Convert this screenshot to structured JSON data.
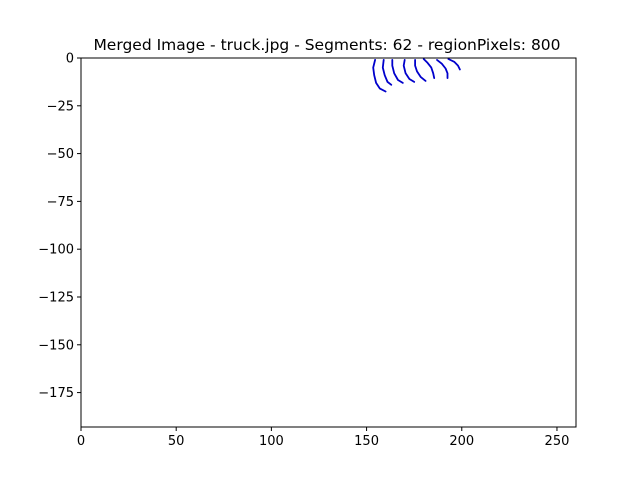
{
  "chart_data": {
    "type": "line",
    "title": "Merged Image - truck.jpg - Segments: 62 - regionPixels: 800",
    "xlabel": "",
    "ylabel": "",
    "xlim": [
      0,
      260
    ],
    "ylim": [
      -193,
      0
    ],
    "grid": false,
    "x_ticks": [
      0,
      50,
      100,
      150,
      200,
      250
    ],
    "x_tick_labels": [
      "0",
      "50",
      "100",
      "150",
      "200",
      "250"
    ],
    "y_ticks": [
      0,
      -25,
      -50,
      -75,
      -100,
      -125,
      -150,
      -175
    ],
    "y_tick_labels": [
      "0",
      "−25",
      "−50",
      "−75",
      "−100",
      "−125",
      "−150",
      "−175"
    ],
    "series_color": "#0000cc",
    "series": [
      {
        "points": [
          [
            154.5,
            -1
          ],
          [
            153.5,
            -5
          ],
          [
            154,
            -9
          ],
          [
            155,
            -13
          ],
          [
            157,
            -16
          ],
          [
            160,
            -17.5
          ]
        ]
      },
      {
        "points": [
          [
            159,
            -1
          ],
          [
            158.5,
            -5
          ],
          [
            159.5,
            -9
          ],
          [
            161,
            -12.5
          ],
          [
            163,
            -14
          ]
        ]
      },
      {
        "points": [
          [
            163.5,
            -1
          ],
          [
            163.5,
            -4
          ],
          [
            164.5,
            -8
          ],
          [
            166.5,
            -11.5
          ],
          [
            169,
            -13
          ]
        ]
      },
      {
        "points": [
          [
            170,
            -1
          ],
          [
            169.5,
            -4
          ],
          [
            170.5,
            -8
          ],
          [
            172.5,
            -11
          ],
          [
            175,
            -12.5
          ]
        ]
      },
      {
        "points": [
          [
            175.5,
            -1
          ],
          [
            175.5,
            -4
          ],
          [
            176.5,
            -7
          ],
          [
            178.5,
            -10
          ],
          [
            181,
            -12
          ]
        ]
      },
      {
        "points": [
          [
            180,
            -0.5
          ],
          [
            182,
            -2.5
          ],
          [
            184,
            -5
          ],
          [
            185,
            -8
          ],
          [
            185.5,
            -10.5
          ]
        ]
      },
      {
        "points": [
          [
            187,
            -1
          ],
          [
            189.5,
            -3
          ],
          [
            191.5,
            -5.5
          ],
          [
            192.5,
            -8
          ],
          [
            192.5,
            -10.5
          ]
        ]
      },
      {
        "points": [
          [
            193,
            -0.5
          ],
          [
            196,
            -2
          ],
          [
            198,
            -4
          ],
          [
            199,
            -6
          ]
        ]
      }
    ]
  }
}
